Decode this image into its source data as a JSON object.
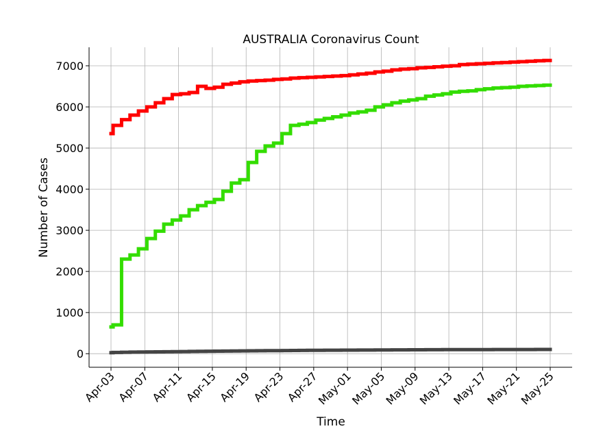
{
  "chart_data": {
    "type": "line",
    "title": "AUSTRALIA Coronavirus Count",
    "xlabel": "Time",
    "ylabel": "Number of Cases",
    "x": [
      "2020-04-03",
      "2020-04-04",
      "2020-04-05",
      "2020-04-06",
      "2020-04-07",
      "2020-04-08",
      "2020-04-09",
      "2020-04-10",
      "2020-04-11",
      "2020-04-12",
      "2020-04-13",
      "2020-04-14",
      "2020-04-15",
      "2020-04-16",
      "2020-04-17",
      "2020-04-18",
      "2020-04-19",
      "2020-04-20",
      "2020-04-21",
      "2020-04-22",
      "2020-04-23",
      "2020-04-24",
      "2020-04-25",
      "2020-04-26",
      "2020-04-27",
      "2020-04-28",
      "2020-04-29",
      "2020-04-30",
      "2020-05-01",
      "2020-05-02",
      "2020-05-03",
      "2020-05-04",
      "2020-05-05",
      "2020-05-06",
      "2020-05-07",
      "2020-05-08",
      "2020-05-09",
      "2020-05-10",
      "2020-05-11",
      "2020-05-12",
      "2020-05-13",
      "2020-05-14",
      "2020-05-15",
      "2020-05-16",
      "2020-05-17",
      "2020-05-18",
      "2020-05-19",
      "2020-05-20",
      "2020-05-21",
      "2020-05-22",
      "2020-05-23",
      "2020-05-24",
      "2020-05-25"
    ],
    "x_tick_labels": [
      "Apr-03",
      "Apr-07",
      "Apr-11",
      "Apr-15",
      "Apr-19",
      "Apr-23",
      "Apr-27",
      "May-01",
      "May-05",
      "May-09",
      "May-13",
      "May-17",
      "May-21",
      "May-25"
    ],
    "x_tick_dates": [
      "2020-04-03",
      "2020-04-07",
      "2020-04-11",
      "2020-04-15",
      "2020-04-19",
      "2020-04-23",
      "2020-04-27",
      "2020-05-01",
      "2020-05-05",
      "2020-05-09",
      "2020-05-13",
      "2020-05-17",
      "2020-05-21",
      "2020-05-25"
    ],
    "y_ticks": [
      0,
      1000,
      2000,
      3000,
      4000,
      5000,
      6000,
      7000
    ],
    "ylim": [
      -330,
      7450
    ],
    "grid": true,
    "series": [
      {
        "color": "#ff0000",
        "values": [
          5350,
          5550,
          5690,
          5800,
          5900,
          6000,
          6100,
          6200,
          6300,
          6320,
          6350,
          6500,
          6450,
          6480,
          6550,
          6580,
          6610,
          6630,
          6640,
          6650,
          6670,
          6680,
          6700,
          6710,
          6720,
          6730,
          6740,
          6750,
          6760,
          6780,
          6800,
          6820,
          6850,
          6870,
          6900,
          6920,
          6930,
          6950,
          6960,
          6975,
          6990,
          7000,
          7030,
          7040,
          7050,
          7060,
          7070,
          7080,
          7090,
          7100,
          7110,
          7120,
          7130
        ]
      },
      {
        "color": "#33dd00",
        "values": [
          650,
          700,
          2300,
          2400,
          2550,
          2800,
          2980,
          3150,
          3250,
          3350,
          3500,
          3600,
          3680,
          3750,
          3950,
          4150,
          4230,
          4650,
          4920,
          5050,
          5120,
          5350,
          5550,
          5580,
          5620,
          5680,
          5720,
          5760,
          5800,
          5850,
          5880,
          5920,
          6000,
          6050,
          6100,
          6140,
          6170,
          6200,
          6260,
          6290,
          6320,
          6360,
          6380,
          6390,
          6420,
          6440,
          6460,
          6470,
          6480,
          6500,
          6510,
          6520,
          6530
        ]
      },
      {
        "color": "#444444",
        "values": [
          25,
          30,
          35,
          38,
          40,
          42,
          45,
          47,
          50,
          52,
          55,
          57,
          60,
          62,
          64,
          66,
          68,
          70,
          72,
          74,
          75,
          76,
          78,
          80,
          82,
          83,
          84,
          85,
          86,
          87,
          88,
          89,
          90,
          91,
          92,
          93,
          94,
          95,
          96,
          97,
          98,
          98,
          99,
          99,
          100,
          100,
          101,
          101,
          102,
          102,
          102,
          103,
          103
        ]
      }
    ]
  }
}
